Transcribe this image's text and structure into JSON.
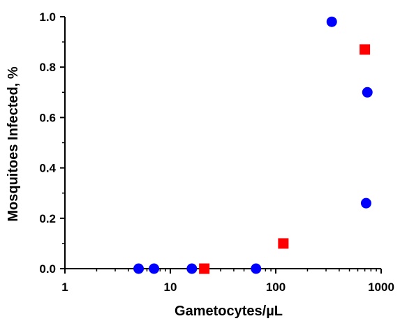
{
  "chart_data": {
    "type": "scatter",
    "xlabel": "Gametocytes/µL",
    "ylabel": "Mosquitoes Infected, %",
    "xscale": "log",
    "xlim": [
      1,
      1000
    ],
    "ylim": [
      0,
      1.0
    ],
    "grid": false,
    "legend": "none",
    "x_ticks": [
      {
        "value": 1,
        "label": "1"
      },
      {
        "value": 10,
        "label": "10"
      },
      {
        "value": 100,
        "label": "100"
      },
      {
        "value": 1000,
        "label": "1000"
      }
    ],
    "y_ticks": [
      {
        "value": 0.0,
        "label": "0.0"
      },
      {
        "value": 0.2,
        "label": "0.2"
      },
      {
        "value": 0.4,
        "label": "0.4"
      },
      {
        "value": 0.6,
        "label": "0.6"
      },
      {
        "value": 0.8,
        "label": "0.8"
      },
      {
        "value": 1.0,
        "label": "1.0"
      }
    ],
    "series": [
      {
        "marker": "circle",
        "color": "#0000ff",
        "points": [
          {
            "x": 5,
            "y": 0.0
          },
          {
            "x": 7,
            "y": 0.0
          },
          {
            "x": 16,
            "y": 0.0
          },
          {
            "x": 65,
            "y": 0.0
          },
          {
            "x": 340,
            "y": 0.98
          },
          {
            "x": 740,
            "y": 0.7
          },
          {
            "x": 720,
            "y": 0.26
          }
        ]
      },
      {
        "marker": "square",
        "color": "#ff0000",
        "points": [
          {
            "x": 21,
            "y": 0.0
          },
          {
            "x": 118,
            "y": 0.1
          },
          {
            "x": 700,
            "y": 0.87
          }
        ]
      }
    ]
  }
}
